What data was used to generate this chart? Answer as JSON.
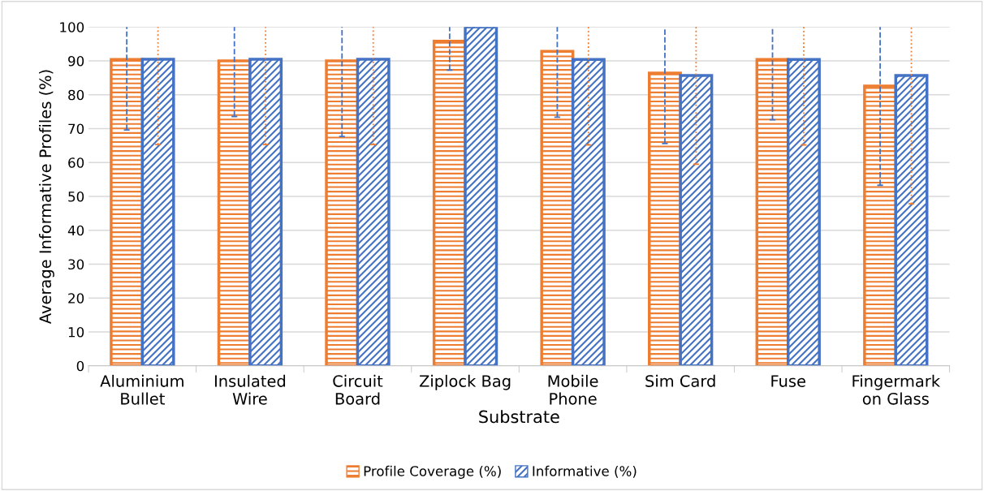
{
  "chart_data": {
    "type": "bar",
    "xlabel": "Substrate",
    "ylabel": "Average Informative Profiles (%)",
    "categories": [
      "Aluminium\nBullet",
      "Insulated\nWire",
      "Circuit\nBoard",
      "Ziplock Bag",
      "Mobile\nPhone",
      "Sim Card",
      "Fuse",
      "Fingermark\non Glass"
    ],
    "series": [
      {
        "name": "Profile Coverage (%)",
        "color": "#ed7d31",
        "values": [
          90.4,
          90,
          90,
          95.8,
          92.8,
          86.4,
          90.4,
          82.6
        ],
        "errors": [
          [
            69.6,
            100
          ],
          [
            73.6,
            100
          ],
          [
            67.7,
            100
          ],
          [
            87.3,
            100
          ],
          [
            73.4,
            100
          ],
          [
            65.6,
            100
          ],
          [
            72.6,
            100
          ],
          [
            53.3,
            100
          ]
        ]
      },
      {
        "name": "Informative (%)",
        "color": "#4472c4",
        "values": [
          90.5,
          90.5,
          90.5,
          100,
          90.4,
          85.7,
          90.4,
          85.7
        ],
        "errors": [
          [
            65.3,
            100
          ],
          [
            65.3,
            100
          ],
          [
            65.3,
            100
          ],
          null,
          [
            65.2,
            100
          ],
          [
            59.5,
            100
          ],
          [
            65.2,
            100
          ],
          [
            47.8,
            100
          ]
        ]
      }
    ],
    "ylim": [
      0,
      100
    ],
    "yticks": [
      0,
      10,
      20,
      30,
      40,
      50,
      60,
      70,
      80,
      90,
      100
    ],
    "grid": "y",
    "legend": "bottom"
  }
}
